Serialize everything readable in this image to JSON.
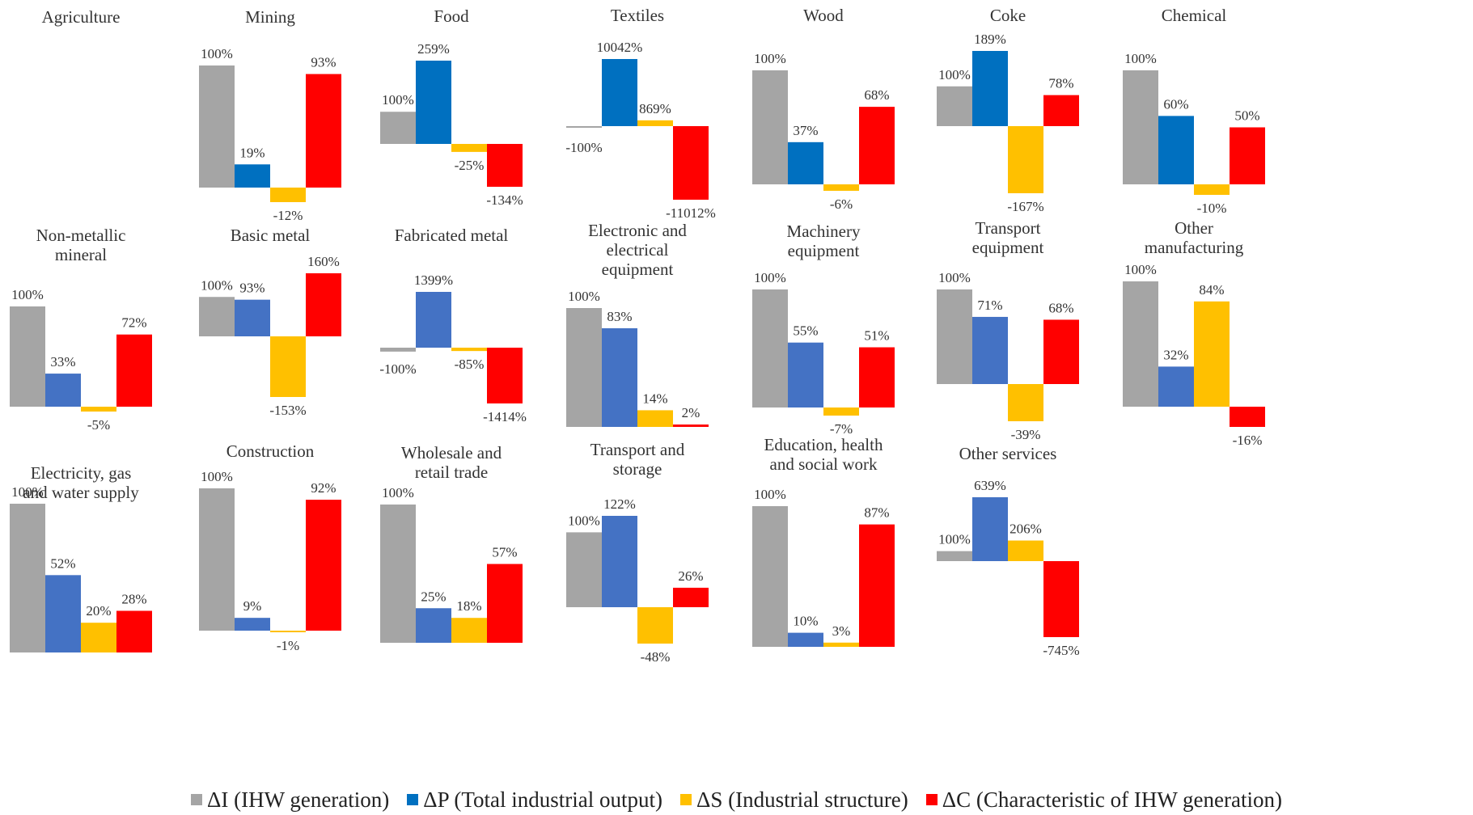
{
  "chart_data": [
    {
      "type": "bar",
      "title": "Agriculture",
      "categories": [
        "ΔI",
        "ΔP",
        "ΔS",
        "ΔC"
      ],
      "values": [],
      "labels": []
    },
    {
      "type": "bar",
      "title": "Mining",
      "categories": [
        "ΔI",
        "ΔP",
        "ΔS",
        "ΔC"
      ],
      "values": [
        100,
        19,
        -12,
        93
      ],
      "labels": [
        "100%",
        "19%",
        "-12%",
        "93%"
      ]
    },
    {
      "type": "bar",
      "title": "Food",
      "categories": [
        "ΔI",
        "ΔP",
        "ΔS",
        "ΔC"
      ],
      "values": [
        100,
        259,
        -25,
        -134
      ],
      "labels": [
        "100%",
        "259%",
        "-25%",
        "-134%"
      ]
    },
    {
      "type": "bar",
      "title": "Textiles",
      "categories": [
        "ΔI",
        "ΔP",
        "ΔS",
        "ΔC"
      ],
      "values": [
        -100,
        10042,
        869,
        -11012
      ],
      "labels": [
        "-100%",
        "10042%",
        "869%",
        "-11012%"
      ]
    },
    {
      "type": "bar",
      "title": "Wood",
      "categories": [
        "ΔI",
        "ΔP",
        "ΔS",
        "ΔC"
      ],
      "values": [
        100,
        37,
        -6,
        68
      ],
      "labels": [
        "100%",
        "37%",
        "-6%",
        "68%"
      ]
    },
    {
      "type": "bar",
      "title": "Coke",
      "categories": [
        "ΔI",
        "ΔP",
        "ΔS",
        "ΔC"
      ],
      "values": [
        100,
        189,
        -167,
        78
      ],
      "labels": [
        "100%",
        "189%",
        "-167%",
        "78%"
      ]
    },
    {
      "type": "bar",
      "title": "Chemical",
      "categories": [
        "ΔI",
        "ΔP",
        "ΔS",
        "ΔC"
      ],
      "values": [
        100,
        60,
        -10,
        50
      ],
      "labels": [
        "100%",
        "60%",
        "-10%",
        "50%"
      ]
    },
    {
      "type": "bar",
      "title": "Non-metallic mineral",
      "categories": [
        "ΔI",
        "ΔP",
        "ΔS",
        "ΔC"
      ],
      "values": [
        100,
        33,
        -5,
        72
      ],
      "labels": [
        "100%",
        "33%",
        "-5%",
        "72%"
      ]
    },
    {
      "type": "bar",
      "title": "Basic metal",
      "categories": [
        "ΔI",
        "ΔP",
        "ΔS",
        "ΔC"
      ],
      "values": [
        100,
        93,
        -153,
        160
      ],
      "labels": [
        "100%",
        "93%",
        "-153%",
        "160%"
      ]
    },
    {
      "type": "bar",
      "title": "Fabricated metal",
      "categories": [
        "ΔI",
        "ΔP",
        "ΔS",
        "ΔC"
      ],
      "values": [
        -100,
        1399,
        -85,
        -1414
      ],
      "labels": [
        "-100%",
        "1399%",
        "-85%",
        "-1414%"
      ]
    },
    {
      "type": "bar",
      "title": "Electronic and electrical equipment",
      "categories": [
        "ΔI",
        "ΔP",
        "ΔS",
        "ΔC"
      ],
      "values": [
        100,
        83,
        14,
        2
      ],
      "labels": [
        "100%",
        "83%",
        "14%",
        "2%"
      ]
    },
    {
      "type": "bar",
      "title": "Machinery equipment",
      "categories": [
        "ΔI",
        "ΔP",
        "ΔS",
        "ΔC"
      ],
      "values": [
        100,
        55,
        -7,
        51
      ],
      "labels": [
        "100%",
        "55%",
        "-7%",
        "51%"
      ]
    },
    {
      "type": "bar",
      "title": "Transport equipment",
      "categories": [
        "ΔI",
        "ΔP",
        "ΔS",
        "ΔC"
      ],
      "values": [
        100,
        71,
        -39,
        68
      ],
      "labels": [
        "100%",
        "71%",
        "-39%",
        "68%"
      ]
    },
    {
      "type": "bar",
      "title": "Other manufacturing",
      "categories": [
        "ΔI",
        "ΔP",
        "ΔS",
        "ΔC"
      ],
      "values": [
        100,
        32,
        84,
        -16
      ],
      "labels": [
        "100%",
        "32%",
        "84%",
        "-16%"
      ]
    },
    {
      "type": "bar",
      "title": "Electricity, gas and water supply",
      "categories": [
        "ΔI",
        "ΔP",
        "ΔS",
        "ΔC"
      ],
      "values": [
        100,
        52,
        20,
        28
      ],
      "labels": [
        "100%",
        "52%",
        "20%",
        "28%"
      ]
    },
    {
      "type": "bar",
      "title": "Construction",
      "categories": [
        "ΔI",
        "ΔP",
        "ΔS",
        "ΔC"
      ],
      "values": [
        100,
        9,
        -1,
        92
      ],
      "labels": [
        "100%",
        "9%",
        "-1%",
        "92%"
      ]
    },
    {
      "type": "bar",
      "title": "Wholesale and retail trade",
      "categories": [
        "ΔI",
        "ΔP",
        "ΔS",
        "ΔC"
      ],
      "values": [
        100,
        25,
        18,
        57
      ],
      "labels": [
        "100%",
        "25%",
        "18%",
        "57%"
      ]
    },
    {
      "type": "bar",
      "title": "Transport and storage",
      "categories": [
        "ΔI",
        "ΔP",
        "ΔS",
        "ΔC"
      ],
      "values": [
        100,
        122,
        -48,
        26
      ],
      "labels": [
        "100%",
        "122%",
        "-48%",
        "26%"
      ]
    },
    {
      "type": "bar",
      "title": "Education, health and social work",
      "categories": [
        "ΔI",
        "ΔP",
        "ΔS",
        "ΔC"
      ],
      "values": [
        100,
        10,
        3,
        87
      ],
      "labels": [
        "100%",
        "10%",
        "3%",
        "87%"
      ]
    },
    {
      "type": "bar",
      "title": "Other services",
      "categories": [
        "ΔI",
        "ΔP",
        "ΔS",
        "ΔC"
      ],
      "values": [
        100,
        639,
        206,
        -745
      ],
      "labels": [
        "100%",
        "639%",
        "206%",
        "-745%"
      ]
    }
  ],
  "legend": [
    {
      "label": "ΔI (IHW generation)",
      "color": "#a5a5a5"
    },
    {
      "label": "ΔP (Total industrial output)",
      "color": "#0070c0"
    },
    {
      "label": "ΔS (Industrial structure)",
      "color": "#ffc000"
    },
    {
      "label": "ΔC (Characteristic of IHW generation)",
      "color": "#ff0000"
    }
  ],
  "colors": {
    "i": "#a5a5a5",
    "p_dark": "#0070c0",
    "p_light": "#4472c4",
    "s": "#ffc000",
    "c": "#ff0000"
  }
}
